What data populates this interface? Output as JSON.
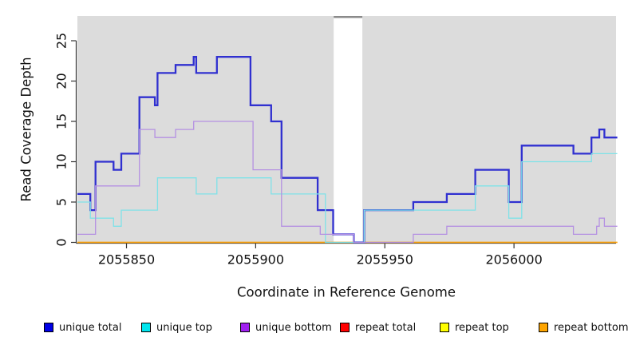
{
  "chart_data": {
    "type": "line",
    "subtype": "step-coverage",
    "title": "",
    "xlabel": "Coordinate in Reference Genome",
    "ylabel": "Read Coverage Depth",
    "xlim": [
      2055831,
      2056039.5
    ],
    "ylim": [
      0,
      25
    ],
    "x_ticks": [
      2055850,
      2055900,
      2055950,
      2056000
    ],
    "x_tick_labels": [
      "2055850",
      "2055900",
      "2055950",
      "2056000"
    ],
    "y_ticks": [
      0,
      5,
      10,
      15,
      20,
      25
    ],
    "y_tick_labels": [
      "0",
      "5",
      "10",
      "15",
      "20",
      "25"
    ],
    "grid": false,
    "panel_bg": "#dcdcdc",
    "gap_region": {
      "from": 2055930.2,
      "to": 2055941.3,
      "fill": "#ffffff",
      "cap_color": "#8a8a8a"
    },
    "legend_position": "bottom",
    "series": [
      {
        "name": "unique total",
        "legend_color": "#0000e6",
        "line_color": "#3030d0",
        "width": 2.3,
        "z": 4,
        "points": [
          [
            2055831,
            6
          ],
          [
            2055836,
            4
          ],
          [
            2055838,
            10
          ],
          [
            2055845,
            9
          ],
          [
            2055848,
            11
          ],
          [
            2055855,
            18
          ],
          [
            2055861,
            17
          ],
          [
            2055862,
            21
          ],
          [
            2055869,
            22
          ],
          [
            2055876,
            23
          ],
          [
            2055877,
            21
          ],
          [
            2055885,
            23
          ],
          [
            2055898,
            17
          ],
          [
            2055906,
            15
          ],
          [
            2055910,
            8
          ],
          [
            2055924,
            4
          ],
          [
            2055930,
            1
          ],
          [
            2055938,
            0
          ],
          [
            2055942,
            4
          ],
          [
            2055961,
            5
          ],
          [
            2055974,
            6
          ],
          [
            2055985,
            9
          ],
          [
            2055998,
            5
          ],
          [
            2056003,
            12
          ],
          [
            2056023,
            11
          ],
          [
            2056030,
            13
          ],
          [
            2056033,
            14
          ],
          [
            2056035,
            13
          ],
          [
            2056040,
            13
          ]
        ]
      },
      {
        "name": "unique top",
        "legend_color": "#00e5ee",
        "line_color": "#7fe2e8",
        "width": 1.3,
        "z": 5,
        "points": [
          [
            2055831,
            5
          ],
          [
            2055836,
            3
          ],
          [
            2055845,
            2
          ],
          [
            2055848,
            4
          ],
          [
            2055862,
            8
          ],
          [
            2055877,
            6
          ],
          [
            2055885,
            8
          ],
          [
            2055906,
            6
          ],
          [
            2055927,
            0
          ],
          [
            2055942,
            4
          ],
          [
            2055985,
            7
          ],
          [
            2055998,
            3
          ],
          [
            2056003,
            10
          ],
          [
            2056030,
            11
          ],
          [
            2056040,
            11
          ]
        ]
      },
      {
        "name": "unique bottom",
        "legend_color": "#a020f0",
        "line_color": "#b591e2",
        "width": 1.3,
        "z": 6,
        "points": [
          [
            2055831,
            1
          ],
          [
            2055838,
            7
          ],
          [
            2055855,
            14
          ],
          [
            2055861,
            13
          ],
          [
            2055869,
            14
          ],
          [
            2055876,
            15
          ],
          [
            2055899,
            9
          ],
          [
            2055910,
            2
          ],
          [
            2055925,
            1
          ],
          [
            2055938,
            0
          ],
          [
            2055961,
            1
          ],
          [
            2055974,
            2
          ],
          [
            2056023,
            1
          ],
          [
            2056032,
            2
          ],
          [
            2056033,
            3
          ],
          [
            2056035,
            2
          ],
          [
            2056040,
            2
          ]
        ]
      },
      {
        "name": "repeat total",
        "legend_color": "#ff0000",
        "line_color": "#dd2222",
        "width": 1.2,
        "z": 1,
        "points": [
          [
            2055831,
            0
          ],
          [
            2056040,
            0
          ]
        ]
      },
      {
        "name": "repeat top",
        "legend_color": "#ffff00",
        "line_color": "#ffff00",
        "width": 1.2,
        "z": 2,
        "points": [
          [
            2055831,
            0
          ],
          [
            2056040,
            0
          ]
        ]
      },
      {
        "name": "repeat bottom",
        "legend_color": "#ffa500",
        "line_color": "#ffa510",
        "width": 1.6,
        "z": 3,
        "points": [
          [
            2055831,
            0
          ],
          [
            2056040,
            0
          ]
        ]
      }
    ],
    "legend": [
      {
        "label": "unique total",
        "color": "#0000e6"
      },
      {
        "label": "unique top",
        "color": "#00e5ee"
      },
      {
        "label": "unique bottom",
        "color": "#a020f0"
      },
      {
        "label": "repeat total",
        "color": "#ff0000"
      },
      {
        "label": "repeat top",
        "color": "#ffff00"
      },
      {
        "label": "repeat bottom",
        "color": "#ffa500"
      }
    ]
  }
}
